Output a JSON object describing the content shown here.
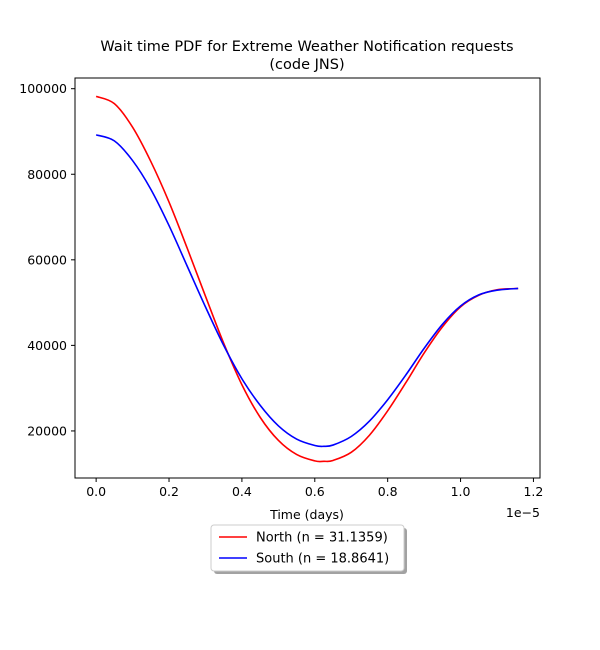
{
  "chart_data": {
    "type": "line",
    "title_line1": "Wait time PDF for Extreme Weather Notification  requests",
    "title_line2": "(code JNS)",
    "xlabel": "Time (days)",
    "ylabel": "",
    "x_offset_text": "1e−5",
    "xlim": [
      -0.058,
      1.218
    ],
    "ylim": [
      9000,
      102500
    ],
    "x_ticks": [
      0.0,
      0.2,
      0.4,
      0.6,
      0.8,
      1.0,
      1.2
    ],
    "x_tick_labels": [
      "0.0",
      "0.2",
      "0.4",
      "0.6",
      "0.8",
      "1.0",
      "1.2"
    ],
    "y_ticks": [
      20000,
      40000,
      60000,
      80000,
      100000
    ],
    "y_tick_labels": [
      "20000",
      "40000",
      "60000",
      "80000",
      "100000"
    ],
    "grid": false,
    "legend_position": "below-center",
    "series": [
      {
        "name": "North (n = 31.1359)",
        "color": "#ff0000",
        "x": [
          0.0,
          0.05,
          0.1,
          0.15,
          0.2,
          0.25,
          0.3,
          0.35,
          0.4,
          0.45,
          0.5,
          0.55,
          0.6,
          0.625,
          0.65,
          0.7,
          0.75,
          0.8,
          0.85,
          0.9,
          0.95,
          1.0,
          1.05,
          1.1,
          1.158
        ],
        "y": [
          98200,
          96500,
          91000,
          83000,
          73500,
          62700,
          51500,
          40500,
          30800,
          23200,
          17800,
          14500,
          13000,
          12900,
          13100,
          15000,
          19000,
          24700,
          31300,
          38200,
          44300,
          49000,
          51700,
          53000,
          53300
        ]
      },
      {
        "name": "South (n = 18.8641)",
        "color": "#0000ff",
        "x": [
          0.0,
          0.05,
          0.1,
          0.15,
          0.2,
          0.25,
          0.3,
          0.35,
          0.4,
          0.45,
          0.5,
          0.55,
          0.6,
          0.625,
          0.65,
          0.7,
          0.75,
          0.8,
          0.85,
          0.9,
          0.95,
          1.0,
          1.05,
          1.1,
          1.158
        ],
        "y": [
          89200,
          87800,
          83200,
          76500,
          68000,
          58500,
          49000,
          40000,
          32200,
          26000,
          21200,
          18100,
          16600,
          16400,
          16700,
          18700,
          22300,
          27300,
          33100,
          39300,
          44900,
          49200,
          51800,
          52900,
          53300
        ]
      }
    ]
  }
}
